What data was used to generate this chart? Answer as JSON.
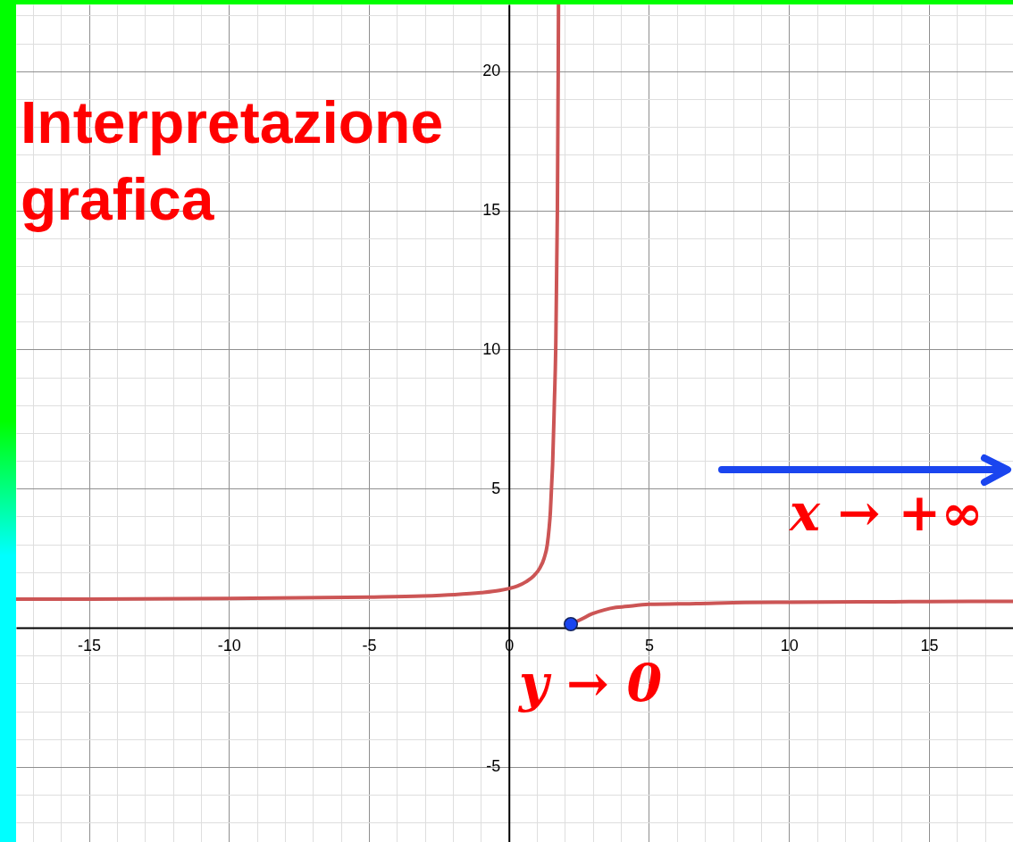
{
  "chart_data": {
    "type": "line",
    "title": "Interpretazione grafica",
    "annotations": [
      "x → +∞",
      "y → 0"
    ],
    "series": [
      {
        "x": [
          -17.6,
          -15,
          -10,
          -5,
          -3.1,
          -1.95,
          -1,
          -0.34,
          0,
          0.3,
          0.62,
          0.89,
          1.1,
          1.26,
          1.37,
          1.43,
          1.48,
          1.51,
          1.54,
          1.56,
          1.62,
          1.67,
          1.73,
          1.76,
          1.77
        ],
        "values": [
          1.03,
          1.03,
          1.05,
          1.1,
          1.14,
          1.19,
          1.26,
          1.34,
          1.41,
          1.5,
          1.66,
          1.87,
          2.14,
          2.51,
          2.99,
          3.53,
          4.17,
          4.81,
          5.45,
          5.88,
          8,
          10,
          15,
          20,
          22.4
        ],
        "color": "#cc5555"
      },
      {
        "x": [
          2.21,
          2.55,
          2.97,
          3.4,
          3.82,
          4.14,
          5,
          6.69,
          8.44,
          10,
          12.52,
          15,
          18
        ],
        "values": [
          0.13,
          0.29,
          0.5,
          0.64,
          0.73,
          0.76,
          0.84,
          0.87,
          0.91,
          0.92,
          0.93,
          0.94,
          0.95
        ],
        "color": "#cc5555"
      },
      {
        "type": "scatter",
        "x": [
          2.21
        ],
        "values": [
          0.13
        ],
        "color": "#1a45ef",
        "marker": "circle"
      }
    ],
    "xlim": [
      -17.6,
      18
    ],
    "ylim": [
      -7.7,
      22.4
    ],
    "xticks": [
      {
        "value": -17,
        "label": null
      },
      {
        "value": -16,
        "label": null
      },
      -15,
      {
        "value": -14,
        "label": null
      },
      {
        "value": -13,
        "label": null
      },
      {
        "value": -12,
        "label": null
      },
      {
        "value": -11,
        "label": null
      },
      -10,
      {
        "value": -9,
        "label": null
      },
      {
        "value": -8,
        "label": null
      },
      {
        "value": -7,
        "label": null
      },
      {
        "value": -6,
        "label": null
      },
      -5,
      {
        "value": -4,
        "label": null
      },
      {
        "value": -3,
        "label": null
      },
      {
        "value": -2,
        "label": null
      },
      {
        "value": -1,
        "label": null
      },
      0,
      {
        "value": 1,
        "label": null
      },
      {
        "value": 2,
        "label": null
      },
      {
        "value": 3,
        "label": null
      },
      {
        "value": 4,
        "label": null
      },
      5,
      {
        "value": 6,
        "label": null
      },
      {
        "value": 7,
        "label": null
      },
      {
        "value": 8,
        "label": null
      },
      {
        "value": 9,
        "label": null
      },
      10,
      {
        "value": 11,
        "label": null
      },
      {
        "value": 12,
        "label": null
      },
      {
        "value": 13,
        "label": null
      },
      {
        "value": 14,
        "label": null
      },
      15,
      {
        "value": 16,
        "label": null
      },
      {
        "value": 17,
        "label": null
      }
    ],
    "yticks": [
      {
        "value": -7,
        "label": null
      },
      {
        "value": -6,
        "label": null
      },
      -5,
      {
        "value": -4,
        "label": null
      },
      {
        "value": -3,
        "label": null
      },
      {
        "value": -2,
        "label": null
      },
      {
        "value": -1,
        "label": null
      },
      {
        "value": 0,
        "label": null
      },
      {
        "value": 1,
        "label": null
      },
      {
        "value": 2,
        "label": null
      },
      {
        "value": 3,
        "label": null
      },
      {
        "value": 4,
        "label": null
      },
      5,
      {
        "value": 6,
        "label": null
      },
      {
        "value": 7,
        "label": null
      },
      {
        "value": 8,
        "label": null
      },
      {
        "value": 9,
        "label": null
      },
      10,
      {
        "value": 11,
        "label": null
      },
      {
        "value": 12,
        "label": null
      },
      {
        "value": 13,
        "label": null
      },
      {
        "value": 14,
        "label": null
      },
      15,
      {
        "value": 16,
        "label": null
      },
      {
        "value": 17,
        "label": null
      },
      {
        "value": 18,
        "label": null
      },
      {
        "value": 19,
        "label": null
      },
      20,
      {
        "value": 21,
        "label": null
      },
      {
        "value": 22,
        "label": null
      }
    ],
    "grid": true
  }
}
